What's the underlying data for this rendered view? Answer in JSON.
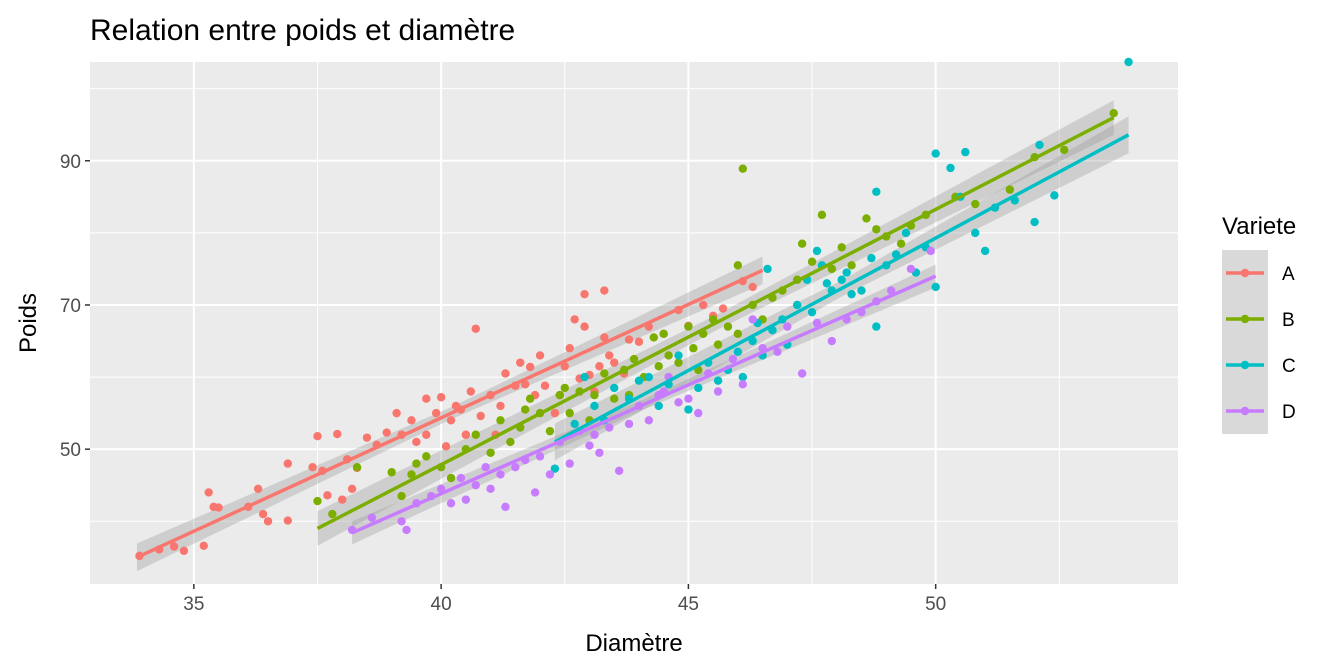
{
  "chart_data": {
    "type": "scatter",
    "title": "Relation entre poids et diamètre",
    "xlabel": "Diamètre",
    "ylabel": "Poids",
    "xlim": [
      32.9,
      54.9
    ],
    "ylim": [
      31.3,
      103.7
    ],
    "xticks": [
      35,
      40,
      45,
      50
    ],
    "yticks": [
      50,
      70,
      90
    ],
    "grid": true,
    "panel_background": "#EBEBEB",
    "legend": {
      "title": "Variete",
      "position": "right"
    },
    "series": [
      {
        "name": "A",
        "color": "#F8766D",
        "fit": {
          "x": [
            33.85,
            46.5
          ],
          "y": [
            35.0,
            74.8
          ],
          "se": 1.2
        },
        "points": [
          [
            33.9,
            35.2
          ],
          [
            34.3,
            36.1
          ],
          [
            34.6,
            36.5
          ],
          [
            34.8,
            35.9
          ],
          [
            35.2,
            36.6
          ],
          [
            35.3,
            44.0
          ],
          [
            35.4,
            42.0
          ],
          [
            35.5,
            41.9
          ],
          [
            36.1,
            42.0
          ],
          [
            36.3,
            44.5
          ],
          [
            36.4,
            41.0
          ],
          [
            36.5,
            40.0
          ],
          [
            36.9,
            48.0
          ],
          [
            36.9,
            40.1
          ],
          [
            37.4,
            47.5
          ],
          [
            37.5,
            51.8
          ],
          [
            37.6,
            47.0
          ],
          [
            37.7,
            43.6
          ],
          [
            37.9,
            52.1
          ],
          [
            38.0,
            43.0
          ],
          [
            38.1,
            48.6
          ],
          [
            38.2,
            44.5
          ],
          [
            38.5,
            51.6
          ],
          [
            38.7,
            50.6
          ],
          [
            38.9,
            52.3
          ],
          [
            39.1,
            55.0
          ],
          [
            39.2,
            52.0
          ],
          [
            39.4,
            54.0
          ],
          [
            39.5,
            51.0
          ],
          [
            39.7,
            52.0
          ],
          [
            39.9,
            55.0
          ],
          [
            40.0,
            57.2
          ],
          [
            40.1,
            50.4
          ],
          [
            40.2,
            54.0
          ],
          [
            40.3,
            56.0
          ],
          [
            40.4,
            55.5
          ],
          [
            40.5,
            52.0
          ],
          [
            40.6,
            58.0
          ],
          [
            40.7,
            66.7
          ],
          [
            40.8,
            54.6
          ],
          [
            41.0,
            57.5
          ],
          [
            41.1,
            52.0
          ],
          [
            41.2,
            56.0
          ],
          [
            41.3,
            60.5
          ],
          [
            41.5,
            58.8
          ],
          [
            41.6,
            62.0
          ],
          [
            41.7,
            59.0
          ],
          [
            41.8,
            61.4
          ],
          [
            41.9,
            57.5
          ],
          [
            42.0,
            63.0
          ],
          [
            42.1,
            58.8
          ],
          [
            42.3,
            55.0
          ],
          [
            42.4,
            57.5
          ],
          [
            42.5,
            61.5
          ],
          [
            42.6,
            64.0
          ],
          [
            42.7,
            68.0
          ],
          [
            42.8,
            59.8
          ],
          [
            42.9,
            67.0
          ],
          [
            43.0,
            60.3
          ],
          [
            43.1,
            58.0
          ],
          [
            43.2,
            61.5
          ],
          [
            43.3,
            65.5
          ],
          [
            43.4,
            63.0
          ],
          [
            43.5,
            62.0
          ],
          [
            43.7,
            60.5
          ],
          [
            43.8,
            65.2
          ],
          [
            44.0,
            64.9
          ],
          [
            44.2,
            67.0
          ],
          [
            44.5,
            66.0
          ],
          [
            44.8,
            69.3
          ],
          [
            45.0,
            67.1
          ],
          [
            45.3,
            70.0
          ],
          [
            45.5,
            68.5
          ],
          [
            45.7,
            69.5
          ],
          [
            46.1,
            73.3
          ],
          [
            46.3,
            72.5
          ],
          [
            43.3,
            72.0
          ],
          [
            42.9,
            71.5
          ],
          [
            39.7,
            57.0
          ],
          [
            38.3,
            47.4
          ]
        ]
      },
      {
        "name": "B",
        "color": "#7CAE00",
        "fit": {
          "x": [
            37.5,
            53.6
          ],
          "y": [
            39.0,
            96.0
          ],
          "se": 1.5
        },
        "points": [
          [
            37.5,
            42.8
          ],
          [
            37.8,
            41.0
          ],
          [
            38.3,
            47.5
          ],
          [
            39.0,
            46.8
          ],
          [
            39.2,
            43.5
          ],
          [
            39.4,
            46.5
          ],
          [
            39.5,
            48.0
          ],
          [
            39.7,
            49.0
          ],
          [
            40.0,
            47.5
          ],
          [
            40.2,
            46.0
          ],
          [
            40.5,
            50.0
          ],
          [
            40.7,
            52.0
          ],
          [
            41.0,
            49.5
          ],
          [
            41.2,
            54.0
          ],
          [
            41.4,
            51.0
          ],
          [
            41.6,
            53.0
          ],
          [
            41.7,
            55.5
          ],
          [
            41.8,
            57.0
          ],
          [
            42.0,
            55.0
          ],
          [
            42.2,
            52.5
          ],
          [
            42.4,
            57.5
          ],
          [
            42.6,
            55.0
          ],
          [
            42.8,
            58.0
          ],
          [
            43.0,
            54.0
          ],
          [
            43.1,
            57.5
          ],
          [
            43.3,
            60.5
          ],
          [
            43.5,
            57.0
          ],
          [
            43.7,
            61.0
          ],
          [
            43.9,
            62.5
          ],
          [
            44.1,
            60.0
          ],
          [
            44.3,
            65.5
          ],
          [
            44.4,
            61.5
          ],
          [
            44.5,
            66.0
          ],
          [
            44.6,
            63.0
          ],
          [
            44.8,
            62.0
          ],
          [
            45.0,
            67.0
          ],
          [
            45.1,
            64.0
          ],
          [
            45.2,
            61.0
          ],
          [
            45.3,
            66.0
          ],
          [
            45.5,
            68.0
          ],
          [
            45.6,
            64.5
          ],
          [
            45.8,
            67.0
          ],
          [
            46.0,
            66.0
          ],
          [
            46.1,
            88.9
          ],
          [
            46.0,
            75.5
          ],
          [
            46.3,
            70.0
          ],
          [
            46.5,
            68.0
          ],
          [
            46.7,
            71.0
          ],
          [
            46.9,
            72.0
          ],
          [
            47.2,
            73.5
          ],
          [
            47.3,
            78.5
          ],
          [
            47.5,
            76.0
          ],
          [
            47.7,
            82.5
          ],
          [
            47.9,
            75.0
          ],
          [
            48.1,
            78.0
          ],
          [
            48.3,
            75.5
          ],
          [
            48.6,
            82.0
          ],
          [
            48.8,
            80.5
          ],
          [
            49.0,
            79.5
          ],
          [
            49.3,
            78.5
          ],
          [
            49.5,
            81.0
          ],
          [
            49.8,
            82.5
          ],
          [
            50.4,
            85.0
          ],
          [
            50.8,
            84.0
          ],
          [
            51.5,
            86.0
          ],
          [
            52.0,
            90.5
          ],
          [
            52.6,
            91.5
          ],
          [
            53.6,
            96.6
          ],
          [
            42.5,
            58.5
          ],
          [
            43.8,
            57.5
          ]
        ]
      },
      {
        "name": "C",
        "color": "#00BFC4",
        "fit": {
          "x": [
            42.3,
            53.9
          ],
          "y": [
            51.0,
            93.6
          ],
          "se": 1.6
        },
        "points": [
          [
            42.3,
            47.3
          ],
          [
            42.7,
            53.5
          ],
          [
            42.9,
            60.0
          ],
          [
            43.1,
            56.0
          ],
          [
            43.3,
            54.0
          ],
          [
            43.5,
            58.5
          ],
          [
            43.8,
            57.0
          ],
          [
            44.0,
            59.5
          ],
          [
            44.2,
            60.0
          ],
          [
            44.4,
            56.0
          ],
          [
            44.6,
            59.0
          ],
          [
            44.8,
            63.0
          ],
          [
            45.0,
            55.5
          ],
          [
            45.2,
            58.5
          ],
          [
            45.4,
            62.0
          ],
          [
            45.6,
            59.5
          ],
          [
            45.8,
            61.0
          ],
          [
            46.0,
            63.5
          ],
          [
            46.1,
            60.0
          ],
          [
            46.3,
            65.0
          ],
          [
            46.5,
            63.0
          ],
          [
            46.6,
            75.0
          ],
          [
            46.7,
            66.5
          ],
          [
            46.9,
            68.0
          ],
          [
            47.0,
            64.5
          ],
          [
            47.2,
            70.0
          ],
          [
            47.4,
            73.5
          ],
          [
            47.5,
            69.0
          ],
          [
            47.6,
            77.5
          ],
          [
            47.7,
            75.5
          ],
          [
            47.9,
            72.0
          ],
          [
            48.1,
            73.5
          ],
          [
            48.2,
            74.5
          ],
          [
            48.3,
            71.5
          ],
          [
            48.5,
            72.0
          ],
          [
            48.7,
            76.5
          ],
          [
            48.8,
            85.7
          ],
          [
            48.8,
            67.0
          ],
          [
            49.0,
            75.5
          ],
          [
            49.2,
            77.0
          ],
          [
            49.4,
            80.0
          ],
          [
            49.6,
            74.5
          ],
          [
            49.8,
            78.0
          ],
          [
            50.0,
            91.0
          ],
          [
            50.0,
            72.5
          ],
          [
            50.3,
            89.0
          ],
          [
            50.5,
            85.0
          ],
          [
            50.6,
            91.2
          ],
          [
            50.8,
            80.0
          ],
          [
            51.0,
            77.5
          ],
          [
            51.2,
            83.5
          ],
          [
            51.6,
            84.5
          ],
          [
            52.0,
            81.5
          ],
          [
            52.1,
            92.2
          ],
          [
            52.4,
            85.2
          ],
          [
            53.9,
            103.7
          ],
          [
            46.4,
            67.5
          ],
          [
            47.8,
            73.0
          ]
        ]
      },
      {
        "name": "D",
        "color": "#C77CFF",
        "fit": {
          "x": [
            38.2,
            50.0
          ],
          "y": [
            38.4,
            74.0
          ],
          "se": 1.0
        },
        "points": [
          [
            38.2,
            38.8
          ],
          [
            38.6,
            40.5
          ],
          [
            39.2,
            40.0
          ],
          [
            39.3,
            38.8
          ],
          [
            39.5,
            42.5
          ],
          [
            39.8,
            43.5
          ],
          [
            40.0,
            44.5
          ],
          [
            40.2,
            42.5
          ],
          [
            40.4,
            46.0
          ],
          [
            40.5,
            43.0
          ],
          [
            40.7,
            45.0
          ],
          [
            40.9,
            47.5
          ],
          [
            41.0,
            44.5
          ],
          [
            41.2,
            46.5
          ],
          [
            41.3,
            42.0
          ],
          [
            41.5,
            47.5
          ],
          [
            41.7,
            48.5
          ],
          [
            41.9,
            44.0
          ],
          [
            42.0,
            49.0
          ],
          [
            42.2,
            46.5
          ],
          [
            42.4,
            51.0
          ],
          [
            42.6,
            48.0
          ],
          [
            42.8,
            52.5
          ],
          [
            43.0,
            50.5
          ],
          [
            43.2,
            49.5
          ],
          [
            43.4,
            53.0
          ],
          [
            43.6,
            47.0
          ],
          [
            43.8,
            53.5
          ],
          [
            44.0,
            56.0
          ],
          [
            44.2,
            54.0
          ],
          [
            44.4,
            57.5
          ],
          [
            44.6,
            60.0
          ],
          [
            44.8,
            56.5
          ],
          [
            45.0,
            57.0
          ],
          [
            45.2,
            55.0
          ],
          [
            45.4,
            60.5
          ],
          [
            45.6,
            58.0
          ],
          [
            45.9,
            62.5
          ],
          [
            46.1,
            59.0
          ],
          [
            46.3,
            68.0
          ],
          [
            46.5,
            64.0
          ],
          [
            46.8,
            63.5
          ],
          [
            47.0,
            67.0
          ],
          [
            47.3,
            60.5
          ],
          [
            47.6,
            67.5
          ],
          [
            47.9,
            65.0
          ],
          [
            48.2,
            68.0
          ],
          [
            48.5,
            69.0
          ],
          [
            48.8,
            70.5
          ],
          [
            49.1,
            72.0
          ],
          [
            49.5,
            75.0
          ],
          [
            49.9,
            77.5
          ],
          [
            44.5,
            58.0
          ],
          [
            43.1,
            52.0
          ]
        ]
      }
    ]
  }
}
